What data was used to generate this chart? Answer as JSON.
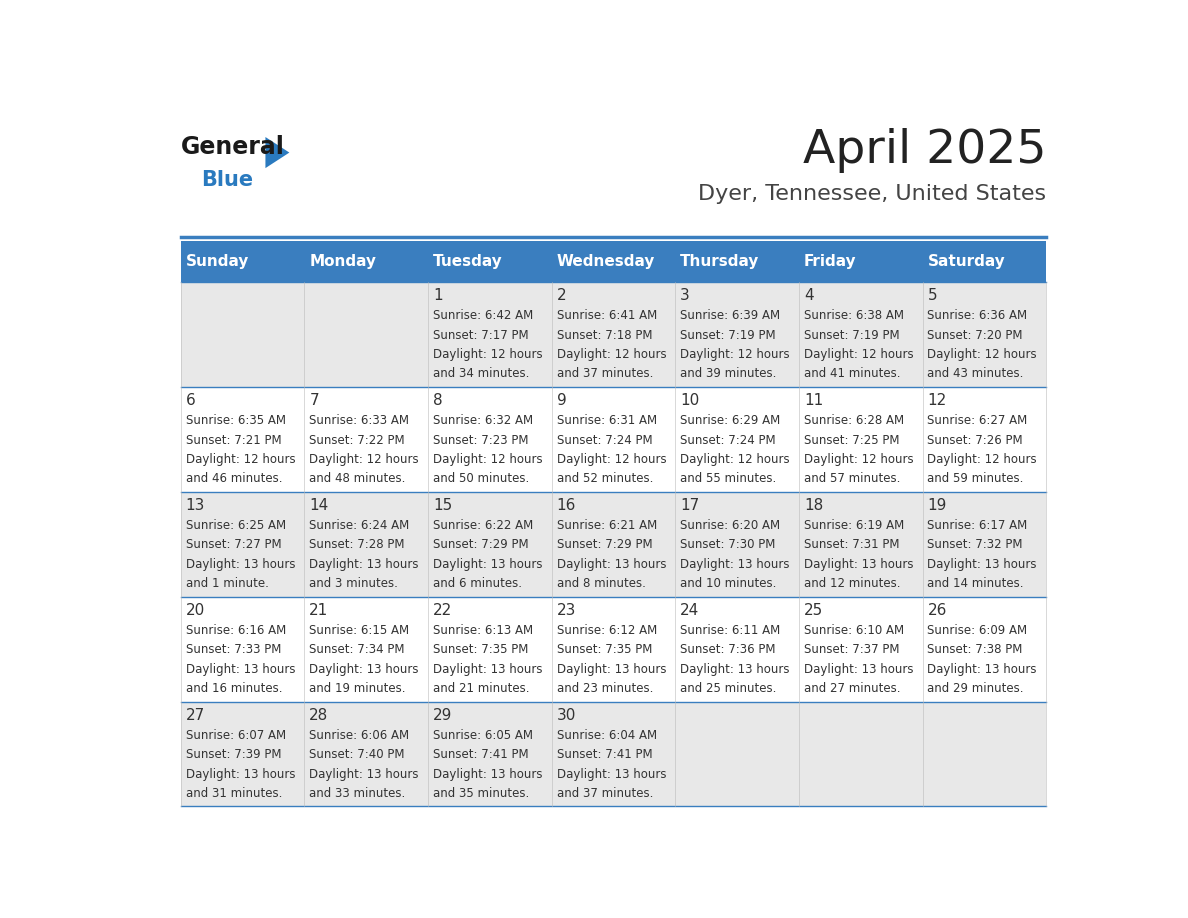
{
  "title": "April 2025",
  "subtitle": "Dyer, Tennessee, United States",
  "header_bg_color": "#3a7ebf",
  "header_text_color": "#ffffff",
  "day_names": [
    "Sunday",
    "Monday",
    "Tuesday",
    "Wednesday",
    "Thursday",
    "Friday",
    "Saturday"
  ],
  "row_bg_colors": [
    "#e8e8e8",
    "#ffffff"
  ],
  "cell_border_color": "#3a7ebf",
  "title_color": "#222222",
  "subtitle_color": "#444444",
  "day_num_color": "#333333",
  "cell_text_color": "#333333",
  "calendar": [
    [
      {
        "day": "",
        "sunrise": "",
        "sunset": "",
        "daylight": ""
      },
      {
        "day": "",
        "sunrise": "",
        "sunset": "",
        "daylight": ""
      },
      {
        "day": "1",
        "sunrise": "6:42 AM",
        "sunset": "7:17 PM",
        "daylight": "12 hours and 34 minutes."
      },
      {
        "day": "2",
        "sunrise": "6:41 AM",
        "sunset": "7:18 PM",
        "daylight": "12 hours and 37 minutes."
      },
      {
        "day": "3",
        "sunrise": "6:39 AM",
        "sunset": "7:19 PM",
        "daylight": "12 hours and 39 minutes."
      },
      {
        "day": "4",
        "sunrise": "6:38 AM",
        "sunset": "7:19 PM",
        "daylight": "12 hours and 41 minutes."
      },
      {
        "day": "5",
        "sunrise": "6:36 AM",
        "sunset": "7:20 PM",
        "daylight": "12 hours and 43 minutes."
      }
    ],
    [
      {
        "day": "6",
        "sunrise": "6:35 AM",
        "sunset": "7:21 PM",
        "daylight": "12 hours and 46 minutes."
      },
      {
        "day": "7",
        "sunrise": "6:33 AM",
        "sunset": "7:22 PM",
        "daylight": "12 hours and 48 minutes."
      },
      {
        "day": "8",
        "sunrise": "6:32 AM",
        "sunset": "7:23 PM",
        "daylight": "12 hours and 50 minutes."
      },
      {
        "day": "9",
        "sunrise": "6:31 AM",
        "sunset": "7:24 PM",
        "daylight": "12 hours and 52 minutes."
      },
      {
        "day": "10",
        "sunrise": "6:29 AM",
        "sunset": "7:24 PM",
        "daylight": "12 hours and 55 minutes."
      },
      {
        "day": "11",
        "sunrise": "6:28 AM",
        "sunset": "7:25 PM",
        "daylight": "12 hours and 57 minutes."
      },
      {
        "day": "12",
        "sunrise": "6:27 AM",
        "sunset": "7:26 PM",
        "daylight": "12 hours and 59 minutes."
      }
    ],
    [
      {
        "day": "13",
        "sunrise": "6:25 AM",
        "sunset": "7:27 PM",
        "daylight": "13 hours and 1 minute."
      },
      {
        "day": "14",
        "sunrise": "6:24 AM",
        "sunset": "7:28 PM",
        "daylight": "13 hours and 3 minutes."
      },
      {
        "day": "15",
        "sunrise": "6:22 AM",
        "sunset": "7:29 PM",
        "daylight": "13 hours and 6 minutes."
      },
      {
        "day": "16",
        "sunrise": "6:21 AM",
        "sunset": "7:29 PM",
        "daylight": "13 hours and 8 minutes."
      },
      {
        "day": "17",
        "sunrise": "6:20 AM",
        "sunset": "7:30 PM",
        "daylight": "13 hours and 10 minutes."
      },
      {
        "day": "18",
        "sunrise": "6:19 AM",
        "sunset": "7:31 PM",
        "daylight": "13 hours and 12 minutes."
      },
      {
        "day": "19",
        "sunrise": "6:17 AM",
        "sunset": "7:32 PM",
        "daylight": "13 hours and 14 minutes."
      }
    ],
    [
      {
        "day": "20",
        "sunrise": "6:16 AM",
        "sunset": "7:33 PM",
        "daylight": "13 hours and 16 minutes."
      },
      {
        "day": "21",
        "sunrise": "6:15 AM",
        "sunset": "7:34 PM",
        "daylight": "13 hours and 19 minutes."
      },
      {
        "day": "22",
        "sunrise": "6:13 AM",
        "sunset": "7:35 PM",
        "daylight": "13 hours and 21 minutes."
      },
      {
        "day": "23",
        "sunrise": "6:12 AM",
        "sunset": "7:35 PM",
        "daylight": "13 hours and 23 minutes."
      },
      {
        "day": "24",
        "sunrise": "6:11 AM",
        "sunset": "7:36 PM",
        "daylight": "13 hours and 25 minutes."
      },
      {
        "day": "25",
        "sunrise": "6:10 AM",
        "sunset": "7:37 PM",
        "daylight": "13 hours and 27 minutes."
      },
      {
        "day": "26",
        "sunrise": "6:09 AM",
        "sunset": "7:38 PM",
        "daylight": "13 hours and 29 minutes."
      }
    ],
    [
      {
        "day": "27",
        "sunrise": "6:07 AM",
        "sunset": "7:39 PM",
        "daylight": "13 hours and 31 minutes."
      },
      {
        "day": "28",
        "sunrise": "6:06 AM",
        "sunset": "7:40 PM",
        "daylight": "13 hours and 33 minutes."
      },
      {
        "day": "29",
        "sunrise": "6:05 AM",
        "sunset": "7:41 PM",
        "daylight": "13 hours and 35 minutes."
      },
      {
        "day": "30",
        "sunrise": "6:04 AM",
        "sunset": "7:41 PM",
        "daylight": "13 hours and 37 minutes."
      },
      {
        "day": "",
        "sunrise": "",
        "sunset": "",
        "daylight": ""
      },
      {
        "day": "",
        "sunrise": "",
        "sunset": "",
        "daylight": ""
      },
      {
        "day": "",
        "sunrise": "",
        "sunset": "",
        "daylight": ""
      }
    ]
  ]
}
